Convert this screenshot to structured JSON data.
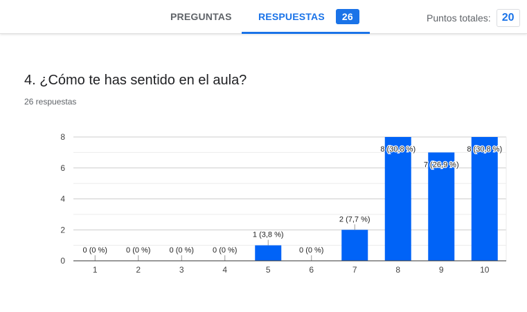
{
  "tabs": {
    "questions_label": "PREGUNTAS",
    "responses_label": "RESPUESTAS",
    "responses_count": "26"
  },
  "points": {
    "label": "Puntos totales:",
    "value": "20"
  },
  "question": {
    "title": "4. ¿Cómo te has sentido en el aula?",
    "response_count_text": "26 respuestas"
  },
  "colors": {
    "accent": "#1a73e8",
    "bar": "#0063f7"
  },
  "chart_data": {
    "type": "bar",
    "title": "",
    "xlabel": "",
    "ylabel": "",
    "categories": [
      "1",
      "2",
      "3",
      "4",
      "5",
      "6",
      "7",
      "8",
      "9",
      "10"
    ],
    "values": [
      0,
      0,
      0,
      0,
      1,
      0,
      2,
      8,
      7,
      8
    ],
    "data_labels": [
      "0 (0 %)",
      "0 (0 %)",
      "0 (0 %)",
      "0 (0 %)",
      "1 (3,8 %)",
      "0 (0 %)",
      "2 (7,7 %)",
      "8 (30,8 %)",
      "7 (26,9 %)",
      "8 (30,8 %)"
    ],
    "y_ticks": [
      0,
      2,
      4,
      6,
      8
    ],
    "ylim": [
      0,
      8
    ],
    "grid": true
  }
}
